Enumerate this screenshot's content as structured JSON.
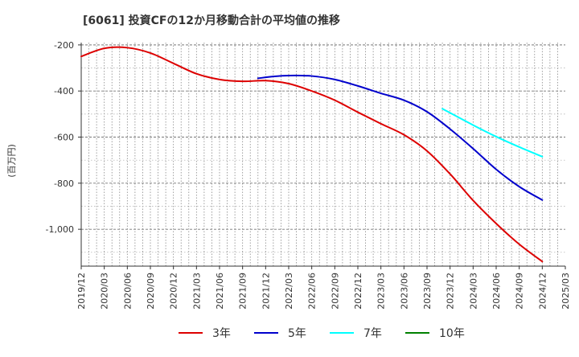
{
  "chart_data": {
    "type": "line",
    "title": "[6061]  投資CFの12か月移動合計の平均値の推移",
    "ylabel": "(百万円)",
    "xlabel": "",
    "ylim": [
      -1160,
      -190
    ],
    "yticks": [
      -200,
      -400,
      -600,
      -800,
      -1000
    ],
    "ytick_labels": [
      "-200",
      "-400",
      "-600",
      "-800",
      "-1,000"
    ],
    "x_range": [
      "2019-12",
      "2025-03"
    ],
    "xtick_labels": [
      "2019/12",
      "2020/03",
      "2020/06",
      "2020/09",
      "2020/12",
      "2021/03",
      "2021/06",
      "2021/09",
      "2021/12",
      "2022/03",
      "2022/06",
      "2022/09",
      "2022/12",
      "2023/03",
      "2023/06",
      "2023/09",
      "2023/12",
      "2024/03",
      "2024/06",
      "2024/09",
      "2024/12",
      "2025/03"
    ],
    "grid": true,
    "legend_position": "bottom",
    "series": [
      {
        "name": "3年",
        "color": "#dd0000",
        "x": [
          "2019-12",
          "2020-03",
          "2020-06",
          "2020-09",
          "2020-12",
          "2021-03",
          "2021-06",
          "2021-09",
          "2021-12",
          "2022-03",
          "2022-06",
          "2022-09",
          "2022-12",
          "2023-03",
          "2023-06",
          "2023-09",
          "2023-12",
          "2024-03",
          "2024-06",
          "2024-09",
          "2024-12"
        ],
        "y": [
          -250,
          -215,
          -212,
          -235,
          -280,
          -325,
          -350,
          -358,
          -355,
          -368,
          -400,
          -440,
          -492,
          -542,
          -590,
          -660,
          -760,
          -875,
          -975,
          -1065,
          -1140
        ]
      },
      {
        "name": "5年",
        "color": "#0000cc",
        "x": [
          "2021-11",
          "2022-01",
          "2022-03",
          "2022-06",
          "2022-09",
          "2022-12",
          "2023-03",
          "2023-06",
          "2023-09",
          "2023-12",
          "2024-03",
          "2024-06",
          "2024-09",
          "2024-12"
        ],
        "y": [
          -345,
          -337,
          -333,
          -335,
          -350,
          -378,
          -410,
          -440,
          -490,
          -565,
          -650,
          -740,
          -815,
          -873
        ]
      },
      {
        "name": "7年",
        "color": "#00ffff",
        "x": [
          "2023-11",
          "2024-03",
          "2024-06",
          "2024-09",
          "2024-12"
        ],
        "y": [
          -477,
          -548,
          -598,
          -643,
          -685
        ]
      },
      {
        "name": "10年",
        "color": "#008000",
        "x": [],
        "y": []
      }
    ]
  }
}
